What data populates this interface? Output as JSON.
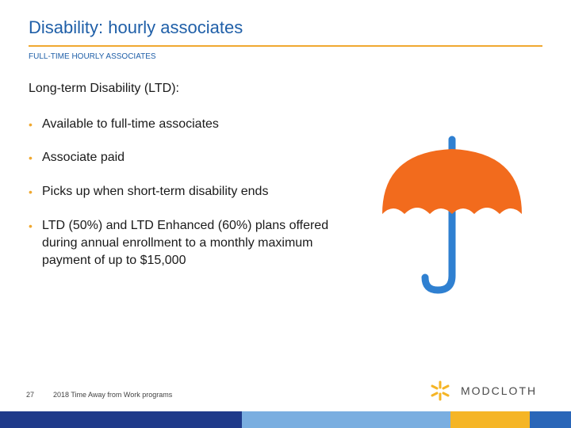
{
  "header": {
    "title": "Disability: hourly associates",
    "subtitle": "FULL-TIME HOURLY ASSOCIATES"
  },
  "content": {
    "heading": "Long-term Disability (LTD):",
    "bullet_glyph": "•",
    "bullets": [
      "Available to full-time associates",
      "Associate paid",
      "Picks up when short-term disability ends",
      "LTD (50%) and LTD Enhanced (60%) plans offered during annual enrollment to a monthly maximum payment of up to $15,000"
    ]
  },
  "illustration": {
    "icon": "umbrella-icon",
    "canopy_color": "#f26b1d",
    "handle_color": "#2f80d1"
  },
  "footer": {
    "page_number": "27",
    "text": "2018 Time Away from Work programs",
    "logo_text": "MODCLOTH",
    "logo_icon": "spark-icon",
    "bar_colors": [
      "#1f3a8a",
      "#7aaee0",
      "#f5b526",
      "#2a66b8"
    ]
  }
}
